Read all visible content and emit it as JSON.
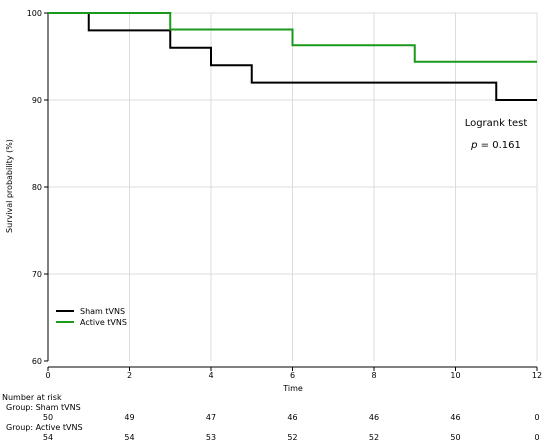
{
  "chart_data": {
    "type": "line",
    "xlabel": "Time",
    "ylabel": "Survival probability (%)",
    "xlim": [
      0,
      12
    ],
    "ylim": [
      60,
      100
    ],
    "x_ticks": [
      0,
      2,
      4,
      6,
      8,
      10,
      12
    ],
    "y_ticks": [
      60,
      70,
      80,
      90,
      100
    ],
    "grid": true,
    "legend_position": "bottom-left",
    "series": [
      {
        "name": "Sham tVNS",
        "color": "#000000",
        "step": true,
        "x": [
          0,
          1,
          1,
          3,
          3,
          4,
          4,
          5,
          5,
          11,
          11,
          12
        ],
        "y": [
          100,
          100,
          98,
          98,
          96,
          96,
          94,
          94,
          92,
          92,
          90,
          90
        ]
      },
      {
        "name": "Active tVNS",
        "color": "#1a9a1a",
        "step": true,
        "x": [
          0,
          3,
          3,
          6,
          6,
          9,
          9,
          12
        ],
        "y": [
          100,
          100,
          98.1,
          98.1,
          96.3,
          96.3,
          94.4,
          94.4
        ]
      }
    ],
    "annotation": {
      "title": "Logrank test",
      "p_symbol": "p",
      "p_value": " = 0.161"
    },
    "risk_table": {
      "title": "Number at risk",
      "times": [
        0,
        2,
        4,
        6,
        8,
        10,
        12
      ],
      "groups": [
        {
          "label": "Group: Sham tVNS",
          "counts": [
            50,
            49,
            47,
            46,
            46,
            46,
            0
          ]
        },
        {
          "label": "Group: Active tVNS",
          "counts": [
            54,
            54,
            53,
            52,
            52,
            50,
            0
          ]
        }
      ]
    }
  }
}
